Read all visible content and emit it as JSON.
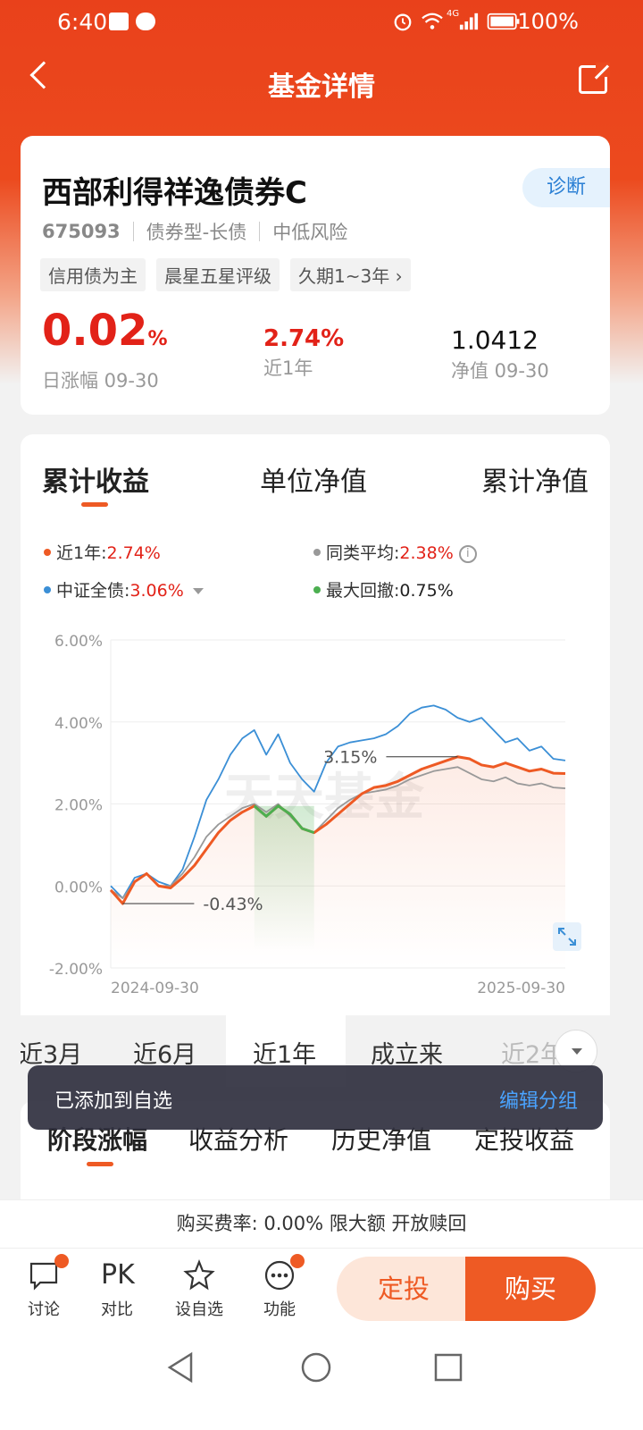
{
  "status": {
    "time": "6:40",
    "network": "4G",
    "battery": "100%"
  },
  "header": {
    "title": "基金详情"
  },
  "fund": {
    "name": "西部利得祥逸债券C",
    "diagnose": "诊断",
    "code": "675093",
    "type": "债券型-长债",
    "risk": "中低风险",
    "tags": [
      "信用债为主",
      "晨星五星评级",
      "久期1~3年 ›"
    ],
    "daily_change": "0.02",
    "daily_change_unit": "%",
    "daily_label": "日涨幅 09-30",
    "one_year": "2.74%",
    "one_year_label": "近1年",
    "nav": "1.0412",
    "nav_label": "净值 09-30"
  },
  "chart_tabs": [
    "累计收益",
    "单位净值",
    "累计净值"
  ],
  "legend": {
    "l1_name": "近1年:",
    "l1_val": "2.74%",
    "l2_name": "同类平均:",
    "l2_val": "2.38%",
    "l3_name": "中证全债:",
    "l3_val": "3.06%",
    "l4_name": "最大回撤:",
    "l4_val": "0.75%"
  },
  "colors": {
    "fund": "#ee5a24",
    "peer": "#999999",
    "index": "#3b8fd6",
    "drawdown": "#4caf50"
  },
  "chart_data": {
    "type": "line",
    "ylim": [
      -2,
      6
    ],
    "yticks": [
      "6.00%",
      "4.00%",
      "2.00%",
      "0.00%",
      "-2.00%"
    ],
    "xticks": [
      "2024-09-30",
      "2025-09-30"
    ],
    "watermark": "天天基金",
    "annotations": {
      "min": "-0.43%",
      "max": "3.15%"
    },
    "series": [
      {
        "name": "近1年",
        "values": [
          -0.1,
          -0.43,
          0.1,
          0.3,
          0.0,
          -0.05,
          0.2,
          0.5,
          0.9,
          1.3,
          1.6,
          1.8,
          1.95,
          1.7,
          1.95,
          1.75,
          1.4,
          1.3,
          1.5,
          1.75,
          2.0,
          2.25,
          2.4,
          2.45,
          2.55,
          2.7,
          2.85,
          2.95,
          3.05,
          3.15,
          3.1,
          2.95,
          2.9,
          3.0,
          2.9,
          2.8,
          2.85,
          2.75,
          2.74
        ]
      },
      {
        "name": "同类平均",
        "values": [
          -0.1,
          -0.3,
          0.1,
          0.3,
          0.0,
          0.0,
          0.3,
          0.7,
          1.2,
          1.5,
          1.7,
          1.9,
          2.0,
          1.8,
          2.0,
          1.7,
          1.4,
          1.3,
          1.6,
          1.9,
          2.1,
          2.25,
          2.3,
          2.35,
          2.45,
          2.6,
          2.7,
          2.8,
          2.85,
          2.9,
          2.75,
          2.6,
          2.55,
          2.65,
          2.5,
          2.45,
          2.5,
          2.4,
          2.38
        ]
      },
      {
        "name": "中证全债",
        "values": [
          0.0,
          -0.3,
          0.2,
          0.3,
          0.1,
          0.0,
          0.4,
          1.2,
          2.1,
          2.6,
          3.2,
          3.6,
          3.8,
          3.2,
          3.7,
          3.0,
          2.6,
          2.3,
          3.0,
          3.4,
          3.5,
          3.55,
          3.6,
          3.7,
          3.9,
          4.2,
          4.35,
          4.4,
          4.3,
          4.1,
          4.0,
          4.1,
          3.8,
          3.5,
          3.6,
          3.3,
          3.4,
          3.1,
          3.06
        ]
      }
    ],
    "drawdown_range": [
      12,
      17
    ]
  },
  "ranges": [
    "近3月",
    "近6月",
    "近1年",
    "成立来",
    "近2年"
  ],
  "sections": [
    "阶段涨幅",
    "收益分析",
    "历史净值",
    "定投收益"
  ],
  "toast": {
    "message": "已添加到自选",
    "action": "编辑分组"
  },
  "fee": {
    "text": "购买费率: 0.00% 限大额 开放赎回"
  },
  "bottom": {
    "discuss": "讨论",
    "pk_icon": "PK",
    "pk": "对比",
    "watch": "设自选",
    "func": "功能",
    "auto_invest": "定投",
    "buy": "购买"
  }
}
